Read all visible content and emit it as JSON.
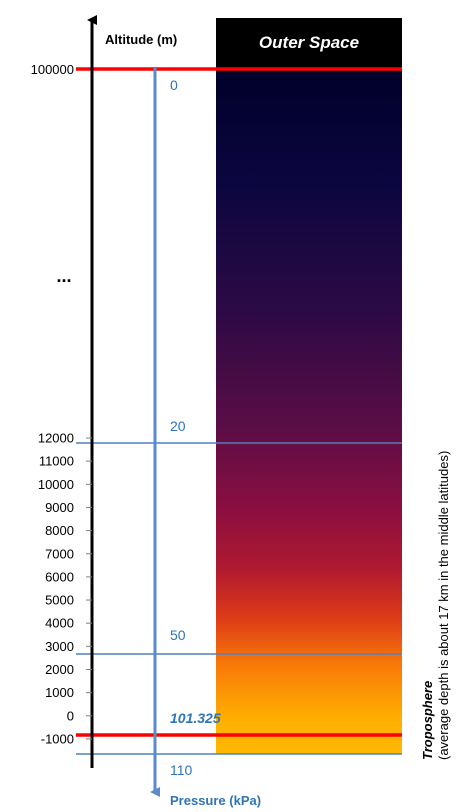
{
  "colors": {
    "altitude_axis": "#000000",
    "pressure_axis": "#5b8bc9",
    "pressure_text": "#2e75b6",
    "highlight_line": "#ff0000",
    "pressure_line": "#4f81bd",
    "space_text": "#ffffff",
    "gradient": [
      "#00002a",
      "#0c0640",
      "#2e0a45",
      "#5a0d45",
      "#8a0e40",
      "#b01a30",
      "#dd3a18",
      "#f87a08",
      "#ffaf00",
      "#ffb800"
    ]
  },
  "altitude_axis": {
    "title": "Altitude (m)",
    "top_label": "100000",
    "ellipsis": "...",
    "ticks": [
      "12000",
      "11000",
      "10000",
      "9000",
      "8000",
      "7000",
      "6000",
      "5000",
      "4000",
      "3000",
      "2000",
      "1000",
      "0",
      "-1000"
    ]
  },
  "pressure_axis": {
    "title": "Pressure (kPa)",
    "labels": [
      "0",
      "20",
      "50",
      "101.325",
      "110"
    ]
  },
  "outer_space_label": "Outer Space",
  "troposphere": {
    "title": "Troposphere",
    "note": "(average depth is about 17  km in the middle latitudes)"
  }
}
